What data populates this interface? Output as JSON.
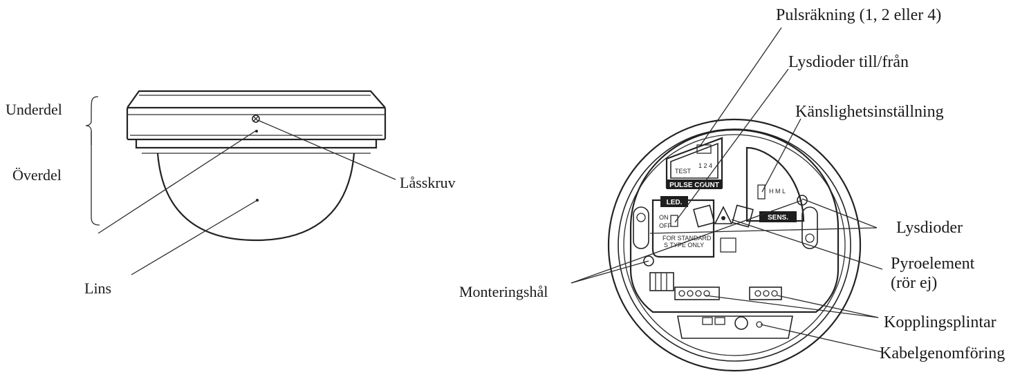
{
  "labels": {
    "underdel": "Underdel",
    "overdel": "Överdel",
    "lasskruv": "Låsskruv",
    "lins": "Lins",
    "pulsrakning": "Pulsräkning (1, 2 eller 4)",
    "lysdioder_tillfran": "Lysdioder till/från",
    "kanslighet": "Känslighetsinställning",
    "lysdioder": "Lysdioder",
    "pyroelement_1": "Pyroelement",
    "pyroelement_2": "(rör ej)",
    "monteringshal": "Monteringshål",
    "kopplingsplintar": "Kopplingsplintar",
    "kabelgenomforing": "Kabelgenomföring"
  },
  "board_markings": {
    "pulse_count": "PULSE COUNT",
    "test": "TEST",
    "led": "LED.",
    "on": "ON",
    "off": "OFF",
    "for_standard": "FOR STANDARD",
    "s_type_only": "S TYPE ONLY",
    "sens": "SENS."
  },
  "colors": {
    "ink": "#1a1a1a",
    "plate": "#1e1e1e"
  }
}
